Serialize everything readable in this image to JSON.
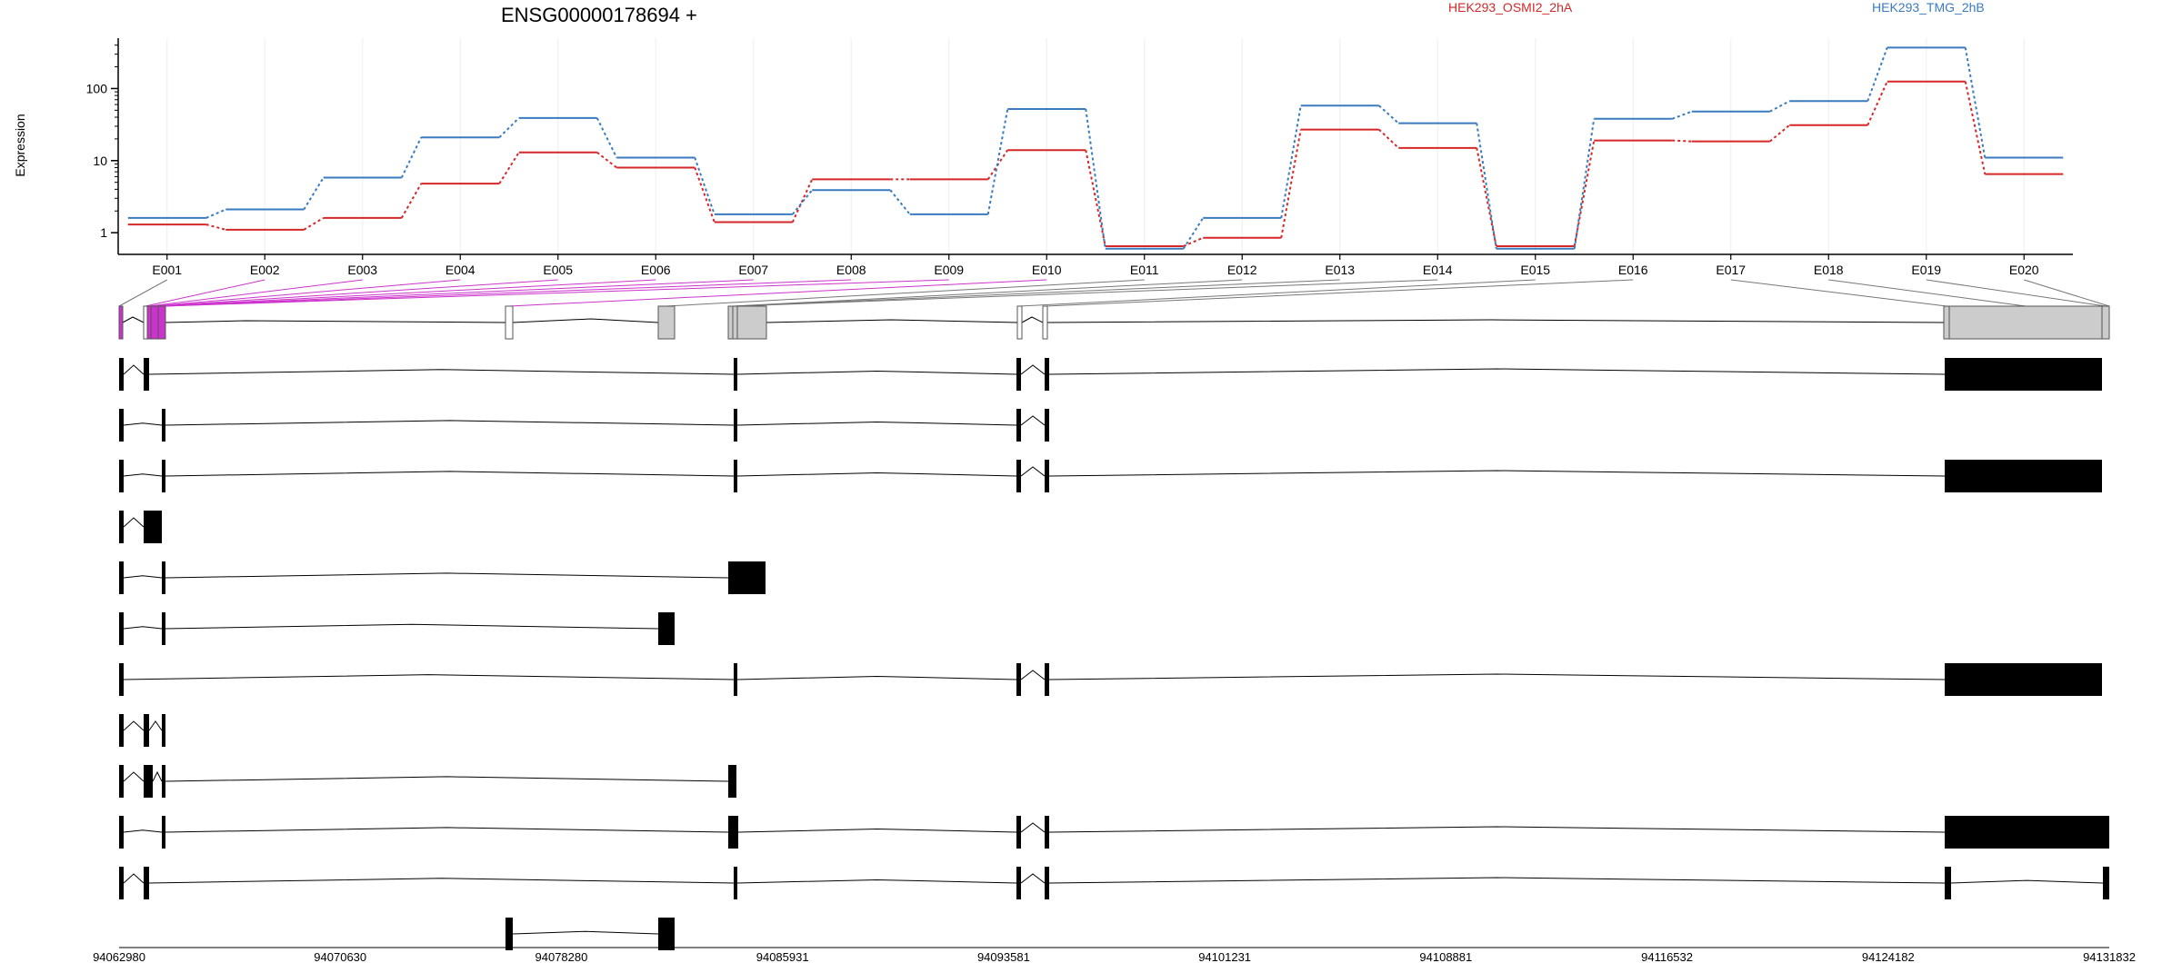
{
  "chart_data": {
    "type": "line",
    "title": "ENSG00000178694 +",
    "ylabel": "Expression",
    "y_scale": "log",
    "ylim": [
      0.5,
      500
    ],
    "y_ticks": [
      {
        "value": 1,
        "label": "1"
      },
      {
        "value": 10,
        "label": "10"
      },
      {
        "value": 100,
        "label": "100"
      }
    ],
    "categories": [
      "E001",
      "E002",
      "E003",
      "E004",
      "E005",
      "E006",
      "E007",
      "E008",
      "E009",
      "E010",
      "E011",
      "E012",
      "E013",
      "E014",
      "E015",
      "E016",
      "E017",
      "E018",
      "E019",
      "E020"
    ],
    "series": [
      {
        "name": "HEK293_OSMI2_2hA",
        "color": "#d62728",
        "values": [
          1.3,
          1.1,
          1.6,
          4.8,
          13,
          8,
          1.4,
          5.5,
          5.5,
          14,
          0.65,
          0.85,
          27,
          15,
          0.65,
          19,
          18.5,
          31,
          125,
          6.5
        ]
      },
      {
        "name": "HEK293_TMG_2hB",
        "color": "#3a7bbf",
        "values": [
          1.6,
          2.1,
          5.8,
          21,
          39,
          11,
          1.8,
          3.9,
          1.8,
          52,
          0.6,
          1.6,
          58,
          33,
          0.6,
          38,
          48,
          67,
          370,
          11
        ]
      }
    ],
    "grid": true,
    "legend_placement": "top"
  },
  "gene_model": {
    "coordinates": [
      "94062980",
      "94070630",
      "94078280",
      "94085931",
      "94093581",
      "94101231",
      "94108881",
      "94116532",
      "94124182",
      "94131832"
    ],
    "highlight_color": "#cc33cc",
    "transcript_count": 12
  }
}
